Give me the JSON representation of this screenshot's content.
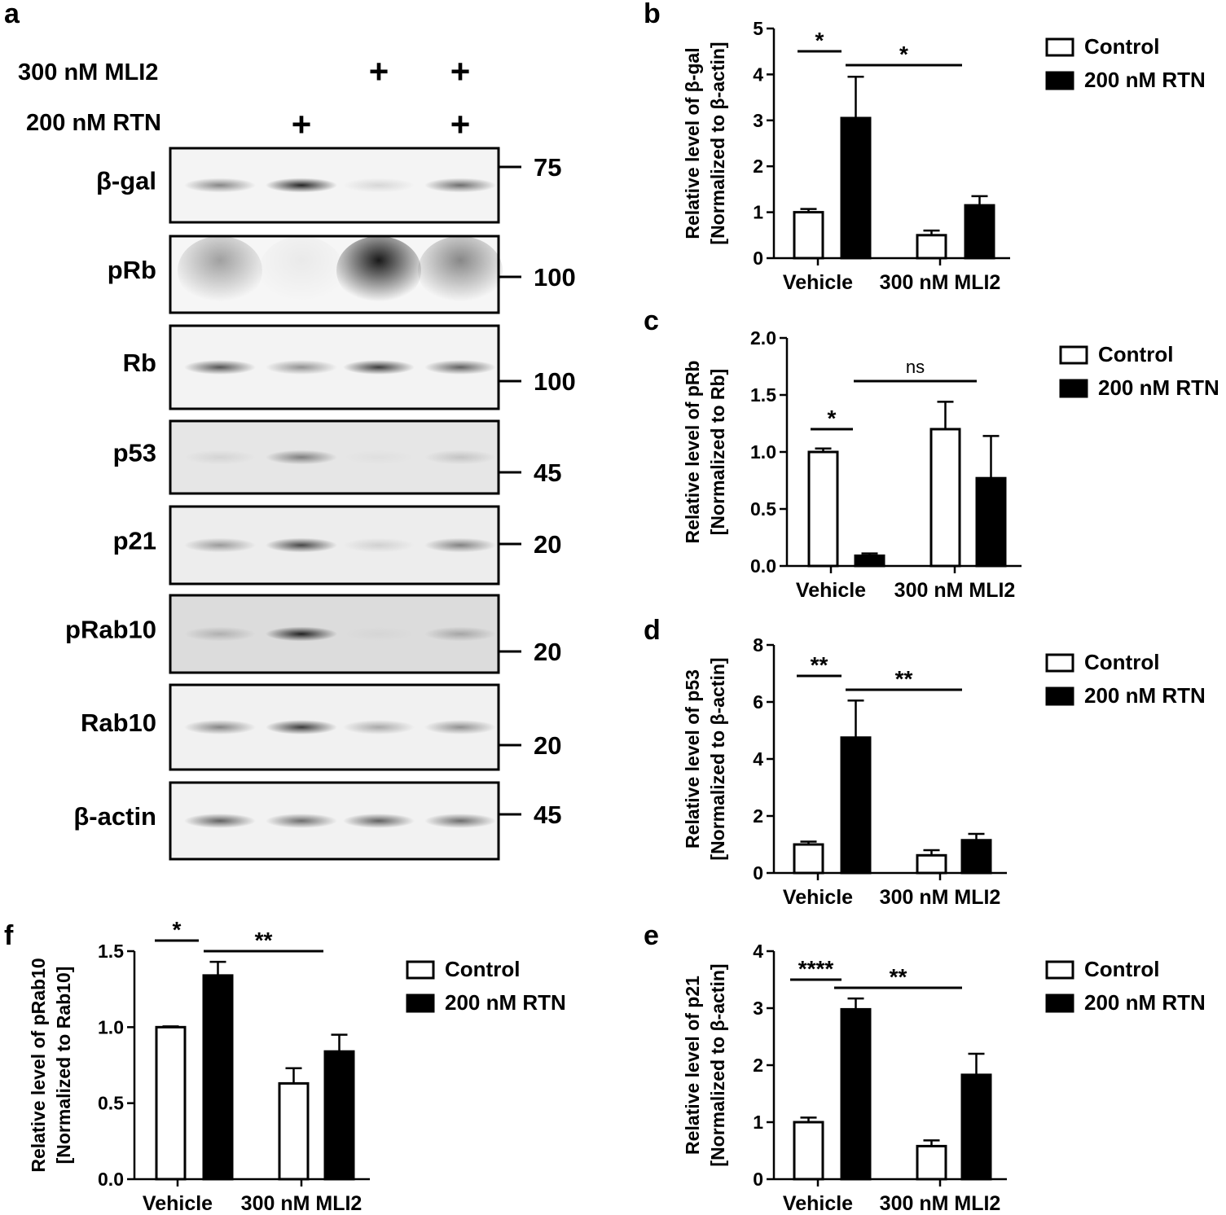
{
  "figure": {
    "panel_a": {
      "label": "a",
      "conditions": [
        {
          "name": "300 nM MLI2",
          "signs": [
            "",
            "",
            "+",
            "+"
          ]
        },
        {
          "name": "200 nM RTN",
          "signs": [
            "",
            "+",
            "",
            "+"
          ]
        }
      ],
      "blots": [
        {
          "label": "β-gal",
          "mw": "75",
          "bg": "#f4f4f4",
          "bands": [
            0.45,
            0.85,
            0.12,
            0.55
          ],
          "smear": [
            0,
            0,
            0,
            0
          ]
        },
        {
          "label": "pRb",
          "mw": "100",
          "bg": "#f6f6f6",
          "bands": [
            0,
            0,
            0,
            0
          ],
          "smear": [
            0.35,
            0.05,
            0.9,
            0.45
          ]
        },
        {
          "label": "Rb",
          "mw": "100",
          "bg": "#f3f3f3",
          "bands": [
            0.65,
            0.4,
            0.75,
            0.6
          ],
          "smear": [
            0,
            0,
            0,
            0
          ]
        },
        {
          "label": "p53",
          "mw": "45",
          "bg": "#e6e6e6",
          "bands": [
            0.08,
            0.45,
            0.03,
            0.15
          ],
          "smear": [
            0,
            0,
            0,
            0
          ]
        },
        {
          "label": "p21",
          "mw": "20",
          "bg": "#ededed",
          "bands": [
            0.35,
            0.7,
            0.12,
            0.45
          ],
          "smear": [
            0,
            0,
            0,
            0
          ]
        },
        {
          "label": "pRab10",
          "mw": "20",
          "bg": "#dcdcdc",
          "bands": [
            0.2,
            0.85,
            0.03,
            0.25
          ],
          "smear": [
            0,
            0,
            0,
            0
          ]
        },
        {
          "label": "Rab10",
          "mw": "20",
          "bg": "#f1f1f1",
          "bands": [
            0.45,
            0.75,
            0.3,
            0.4
          ],
          "smear": [
            0,
            0,
            0,
            0
          ]
        },
        {
          "label": "β-actin",
          "mw": "45",
          "bg": "#f2f2f2",
          "bands": [
            0.6,
            0.55,
            0.6,
            0.55
          ],
          "smear": [
            0,
            0,
            0,
            0
          ]
        }
      ]
    },
    "legend": {
      "control": "Control",
      "treated": "200 nM RTN"
    }
  },
  "chart_data": [
    {
      "id": "b",
      "panel_label": "b",
      "type": "bar",
      "categories": [
        "Vehicle",
        "300 nM MLI2"
      ],
      "series": [
        {
          "name": "Control",
          "values": [
            1.0,
            0.5
          ],
          "errors": [
            0.07,
            0.1
          ],
          "color": "#ffffff"
        },
        {
          "name": "200 nM RTN",
          "values": [
            3.05,
            1.15
          ],
          "errors": [
            0.9,
            0.2
          ],
          "color": "#000000"
        }
      ],
      "ylabel_line1": "Relative level of β-gal",
      "ylabel_line2": "[Normalized to β-actin]",
      "ylim": [
        0,
        5
      ],
      "yticks": [
        "0",
        "1",
        "2",
        "3",
        "4",
        "5"
      ],
      "ytick_values": [
        0,
        1,
        2,
        3,
        4,
        5
      ],
      "significance": [
        {
          "text": "*"
        },
        {
          "text": "*"
        }
      ],
      "legend_position": "top-right"
    },
    {
      "id": "c",
      "panel_label": "c",
      "type": "bar",
      "categories": [
        "Vehicle",
        "300 nM MLI2"
      ],
      "series": [
        {
          "name": "Control",
          "values": [
            1.0,
            1.2
          ],
          "errors": [
            0.03,
            0.24
          ],
          "color": "#ffffff"
        },
        {
          "name": "200 nM RTN",
          "values": [
            0.09,
            0.77
          ],
          "errors": [
            0.02,
            0.37
          ],
          "color": "#000000"
        }
      ],
      "ylabel_line1": "Relative level of pRb",
      "ylabel_line2": "[Normalized to Rb]",
      "ylim": [
        0,
        2.0
      ],
      "yticks": [
        "0.0",
        "0.5",
        "1.0",
        "1.5",
        "2.0"
      ],
      "ytick_values": [
        0,
        0.5,
        1.0,
        1.5,
        2.0
      ],
      "significance": [
        {
          "text": "*"
        },
        {
          "text": "ns"
        }
      ],
      "legend_position": "top-right"
    },
    {
      "id": "d",
      "panel_label": "d",
      "type": "bar",
      "categories": [
        "Vehicle",
        "300 nM MLI2"
      ],
      "series": [
        {
          "name": "Control",
          "values": [
            1.0,
            0.62
          ],
          "errors": [
            0.1,
            0.18
          ],
          "color": "#ffffff"
        },
        {
          "name": "200 nM RTN",
          "values": [
            4.75,
            1.15
          ],
          "errors": [
            1.3,
            0.22
          ],
          "color": "#000000"
        }
      ],
      "ylabel_line1": "Relative level of p53",
      "ylabel_line2": "[Normalized to β-actin]",
      "ylim": [
        0,
        8
      ],
      "yticks": [
        "0",
        "2",
        "4",
        "6",
        "8"
      ],
      "ytick_values": [
        0,
        2,
        4,
        6,
        8
      ],
      "significance": [
        {
          "text": "**"
        },
        {
          "text": "**"
        }
      ],
      "legend_position": "top-right"
    },
    {
      "id": "e",
      "panel_label": "e",
      "type": "bar",
      "categories": [
        "Vehicle",
        "300 nM MLI2"
      ],
      "series": [
        {
          "name": "Control",
          "values": [
            1.0,
            0.58
          ],
          "errors": [
            0.08,
            0.1
          ],
          "color": "#ffffff"
        },
        {
          "name": "200 nM RTN",
          "values": [
            2.98,
            1.83
          ],
          "errors": [
            0.19,
            0.37
          ],
          "color": "#000000"
        }
      ],
      "ylabel_line1": "Relative level of p21",
      "ylabel_line2": "[Normalized to β-actin]",
      "ylim": [
        0,
        4
      ],
      "yticks": [
        "0",
        "1",
        "2",
        "3",
        "4"
      ],
      "ytick_values": [
        0,
        1,
        2,
        3,
        4
      ],
      "significance": [
        {
          "text": "****"
        },
        {
          "text": "**"
        }
      ],
      "legend_position": "top-right"
    },
    {
      "id": "f",
      "panel_label": "f",
      "type": "bar",
      "categories": [
        "Vehicle",
        "300 nM MLI2"
      ],
      "series": [
        {
          "name": "Control",
          "values": [
            1.0,
            0.63
          ],
          "errors": [
            0.005,
            0.1
          ],
          "color": "#ffffff"
        },
        {
          "name": "200 nM RTN",
          "values": [
            1.34,
            0.84
          ],
          "errors": [
            0.09,
            0.11
          ],
          "color": "#000000"
        }
      ],
      "ylabel_line1": "Relative level of pRab10",
      "ylabel_line2": "[Normalized to Rab10]",
      "ylim": [
        0,
        1.5
      ],
      "yticks": [
        "0.0",
        "0.5",
        "1.0",
        "1.5"
      ],
      "ytick_values": [
        0,
        0.5,
        1.0,
        1.5
      ],
      "significance": [
        {
          "text": "*"
        },
        {
          "text": "**"
        }
      ],
      "legend_position": "right"
    }
  ]
}
